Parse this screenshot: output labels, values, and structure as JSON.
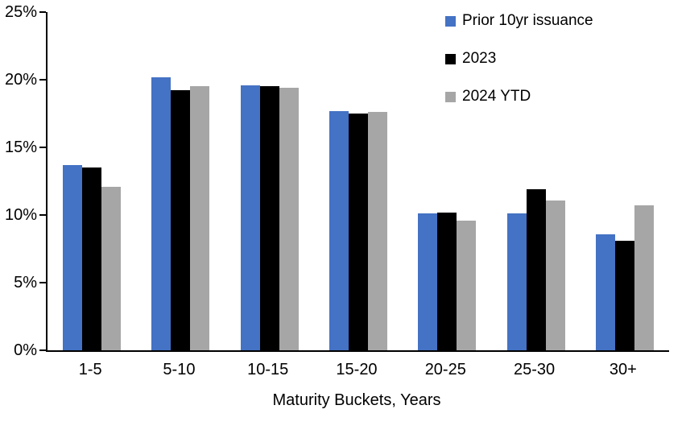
{
  "chart_data": {
    "type": "bar",
    "title": "",
    "categories": [
      "1-5",
      "5-10",
      "10-15",
      "15-20",
      "20-25",
      "25-30",
      "30+"
    ],
    "series": [
      {
        "name": "Prior 10yr issuance",
        "color": "#4472C4",
        "values": [
          13.7,
          20.2,
          19.6,
          17.7,
          10.1,
          10.1,
          8.6
        ]
      },
      {
        "name": "2023",
        "color": "#000000",
        "values": [
          13.5,
          19.2,
          19.5,
          17.5,
          10.2,
          11.9,
          8.1
        ]
      },
      {
        "name": "2024 YTD",
        "color": "#A6A6A6",
        "values": [
          12.1,
          19.5,
          19.4,
          17.6,
          9.6,
          11.1,
          10.7
        ]
      }
    ],
    "xlabel": "Maturity Buckets, Years",
    "ylabel": "",
    "ylim": [
      0,
      25
    ],
    "yticks": [
      0,
      5,
      10,
      15,
      20,
      25
    ],
    "ytick_labels": [
      "0%",
      "5%",
      "10%",
      "15%",
      "20%",
      "25%"
    ],
    "legend_position": "top-right",
    "grid": false,
    "axis_color": "#000000",
    "background": "#FFFFFF"
  }
}
